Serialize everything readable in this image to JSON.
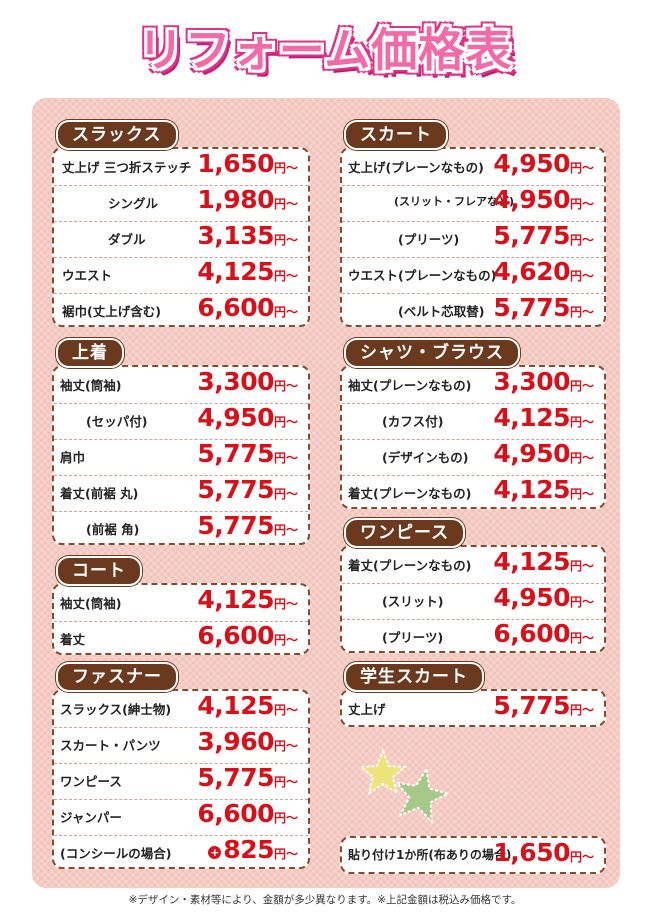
{
  "title": "リフォーム価格表",
  "yen_suffix": "円〜",
  "sections": {
    "slacks": {
      "heading": "スラックス",
      "rows": [
        {
          "label": "丈上げ 三つ折ステッチ",
          "price": "1,650"
        },
        {
          "label": "シングル",
          "price": "1,980"
        },
        {
          "label": "ダブル",
          "price": "3,135"
        },
        {
          "label": "ウエスト",
          "price": "4,125"
        },
        {
          "label": "裾巾(丈上げ含む)",
          "price": "6,600"
        }
      ]
    },
    "skirt": {
      "heading": "スカート",
      "rows": [
        {
          "label": "丈上げ(プレーンなもの)",
          "price": "4,950"
        },
        {
          "label": "(スリット・フレアなど)",
          "price": "4,950"
        },
        {
          "label": "(プリーツ)",
          "price": "5,775"
        },
        {
          "label": "ウエスト(プレーンなもの)",
          "price": "4,620"
        },
        {
          "label": "(ベルト芯取替)",
          "price": "5,775"
        }
      ]
    },
    "jacket": {
      "heading": "上着",
      "rows": [
        {
          "label": "袖丈(筒袖)",
          "price": "3,300"
        },
        {
          "label": "(セッパ付)",
          "price": "4,950"
        },
        {
          "label": "肩巾",
          "price": "5,775"
        },
        {
          "label": "着丈(前裾 丸)",
          "price": "5,775"
        },
        {
          "label": "(前裾 角)",
          "price": "5,775"
        }
      ]
    },
    "shirt": {
      "heading": "シャツ・ブラウス",
      "rows": [
        {
          "label": "袖丈(プレーンなもの)",
          "price": "3,300"
        },
        {
          "label": "(カフス付)",
          "price": "4,125"
        },
        {
          "label": "(デザインもの)",
          "price": "4,950"
        },
        {
          "label": "着丈(プレーンなもの)",
          "price": "4,125"
        }
      ]
    },
    "coat": {
      "heading": "コート",
      "rows": [
        {
          "label": "袖丈(筒袖)",
          "price": "4,125"
        },
        {
          "label": "着丈",
          "price": "6,600"
        }
      ]
    },
    "onepiece": {
      "heading": "ワンピース",
      "rows": [
        {
          "label": "着丈(プレーンなもの)",
          "price": "4,125"
        },
        {
          "label": "(スリット)",
          "price": "4,950"
        },
        {
          "label": "(プリーツ)",
          "price": "6,600"
        }
      ]
    },
    "fastener": {
      "heading": "ファスナー",
      "rows": [
        {
          "label": "スラックス(紳士物)",
          "price": "4,125"
        },
        {
          "label": "スカート・パンツ",
          "price": "3,960"
        },
        {
          "label": "ワンピース",
          "price": "5,775"
        },
        {
          "label": "ジャンパー",
          "price": "6,600"
        },
        {
          "label": "(コンシールの場合)",
          "price": "825",
          "plus": "+"
        }
      ]
    },
    "school": {
      "heading": "学生スカート",
      "rows": [
        {
          "label": "丈上げ",
          "price": "5,775"
        }
      ]
    },
    "patch": {
      "rows": [
        {
          "label": "貼り付け1か所(布ありの場合)",
          "price": "1,650"
        }
      ]
    }
  },
  "footer": "※デザイン・素材等により、金額が多少異なります。※上記金額は税込み価格です。",
  "colors": {
    "title": "#f26aa8",
    "price": "#d9101a",
    "tag": "#6b3a1e",
    "background": "#f5ccc4"
  }
}
